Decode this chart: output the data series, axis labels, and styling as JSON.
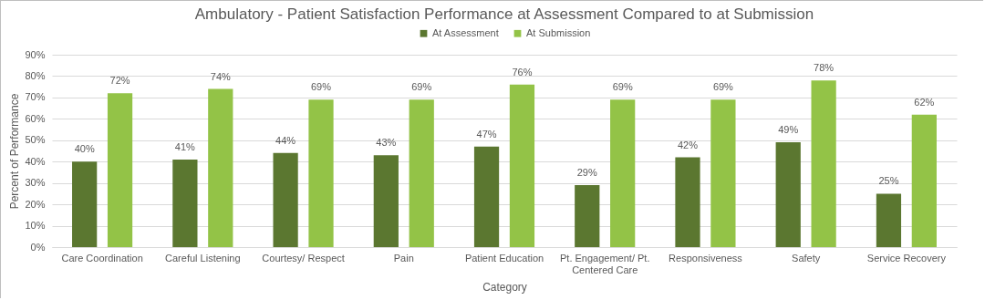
{
  "chart_data": {
    "type": "bar",
    "title": "Ambulatory - Patient Satisfaction Performance at Assessment Compared to at Submission",
    "xlabel": "Category",
    "ylabel": "Percent of Performance",
    "categories": [
      "Care Coordination",
      "Careful Listening",
      "Courtesy/ Respect",
      "Pain",
      "Patient Education",
      "Pt. Engagement/ Pt.\nCentered Care",
      "Responsiveness",
      "Safety",
      "Service Recovery"
    ],
    "series": [
      {
        "name": "At Assessment",
        "color": "#5b7730",
        "values": [
          40,
          41,
          44,
          43,
          47,
          29,
          42,
          49,
          25
        ],
        "value_labels": [
          "40%",
          "41%",
          "44%",
          "43%",
          "47%",
          "29%",
          "42%",
          "49%",
          "25%"
        ]
      },
      {
        "name": "At Submission",
        "color": "#93c347",
        "values": [
          72,
          74,
          69,
          69,
          76,
          69,
          69,
          78,
          62
        ],
        "value_labels": [
          "72%",
          "74%",
          "69%",
          "69%",
          "76%",
          "69%",
          "69%",
          "78%",
          "62%"
        ]
      }
    ],
    "ylim": [
      0,
      90
    ],
    "yticks": [
      {
        "value": 0,
        "label": "0%"
      },
      {
        "value": 10,
        "label": "10%"
      },
      {
        "value": 20,
        "label": "20%"
      },
      {
        "value": 30,
        "label": "30%"
      },
      {
        "value": 40,
        "label": "40%"
      },
      {
        "value": 50,
        "label": "50%"
      },
      {
        "value": 60,
        "label": "60%"
      },
      {
        "value": 70,
        "label": "70%"
      },
      {
        "value": 80,
        "label": "80%"
      },
      {
        "value": 90,
        "label": "90%"
      }
    ],
    "grid": "y",
    "legend": "top"
  }
}
